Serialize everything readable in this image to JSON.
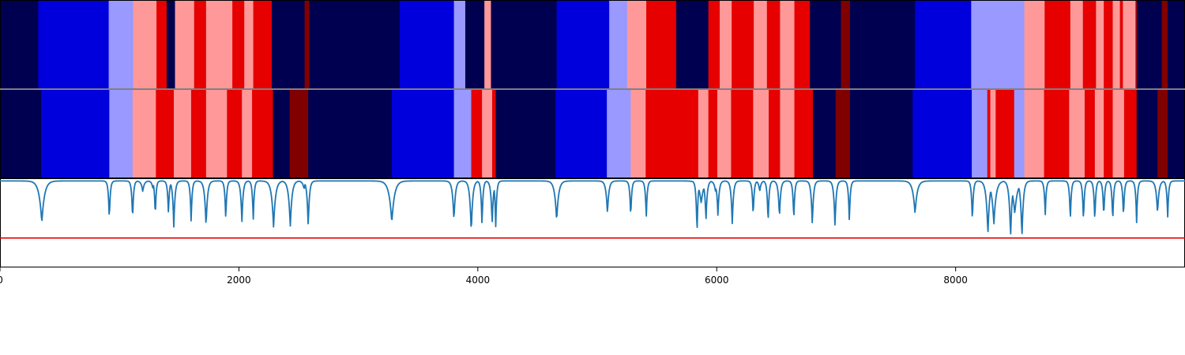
{
  "chart_data": {
    "type": "heatmap",
    "x_range": [
      0,
      9920
    ],
    "x_ticks": [
      0,
      2000,
      4000,
      6000,
      8000
    ],
    "x_tick_labels": [
      "0",
      "2000",
      "4000",
      "6000",
      "8000"
    ],
    "palette": {
      "navy": "#000050",
      "blue": "#0000dc",
      "lightblue": "#9999ff",
      "pink": "#ff9999",
      "red": "#e60000",
      "darkred": "#800000"
    },
    "rows": [
      {
        "segments": [
          {
            "x0": 0,
            "x1": 320,
            "c": "navy"
          },
          {
            "x0": 320,
            "x1": 910,
            "c": "blue"
          },
          {
            "x0": 910,
            "x1": 1115,
            "c": "lightblue"
          },
          {
            "x0": 1115,
            "x1": 1310,
            "c": "pink"
          },
          {
            "x0": 1310,
            "x1": 1395,
            "c": "red"
          },
          {
            "x0": 1395,
            "x1": 1465,
            "c": "navy"
          },
          {
            "x0": 1465,
            "x1": 1625,
            "c": "pink"
          },
          {
            "x0": 1625,
            "x1": 1725,
            "c": "red"
          },
          {
            "x0": 1725,
            "x1": 1945,
            "c": "pink"
          },
          {
            "x0": 1945,
            "x1": 2045,
            "c": "red"
          },
          {
            "x0": 2045,
            "x1": 2120,
            "c": "pink"
          },
          {
            "x0": 2120,
            "x1": 2275,
            "c": "red"
          },
          {
            "x0": 2275,
            "x1": 2550,
            "c": "navy"
          },
          {
            "x0": 2550,
            "x1": 2590,
            "c": "darkred"
          },
          {
            "x0": 2590,
            "x1": 3345,
            "c": "navy"
          },
          {
            "x0": 3345,
            "x1": 3800,
            "c": "blue"
          },
          {
            "x0": 3800,
            "x1": 3895,
            "c": "lightblue"
          },
          {
            "x0": 3895,
            "x1": 4055,
            "c": "navy"
          },
          {
            "x0": 4055,
            "x1": 4110,
            "c": "pink"
          },
          {
            "x0": 4110,
            "x1": 4660,
            "c": "navy"
          },
          {
            "x0": 4660,
            "x1": 5100,
            "c": "blue"
          },
          {
            "x0": 5100,
            "x1": 5250,
            "c": "lightblue"
          },
          {
            "x0": 5250,
            "x1": 5410,
            "c": "pink"
          },
          {
            "x0": 5410,
            "x1": 5660,
            "c": "red"
          },
          {
            "x0": 5660,
            "x1": 5930,
            "c": "navy"
          },
          {
            "x0": 5930,
            "x1": 6025,
            "c": "red"
          },
          {
            "x0": 6025,
            "x1": 6125,
            "c": "pink"
          },
          {
            "x0": 6125,
            "x1": 6310,
            "c": "red"
          },
          {
            "x0": 6310,
            "x1": 6420,
            "c": "pink"
          },
          {
            "x0": 6420,
            "x1": 6530,
            "c": "red"
          },
          {
            "x0": 6530,
            "x1": 6650,
            "c": "pink"
          },
          {
            "x0": 6650,
            "x1": 6780,
            "c": "red"
          },
          {
            "x0": 6780,
            "x1": 7040,
            "c": "navy"
          },
          {
            "x0": 7040,
            "x1": 7115,
            "c": "darkred"
          },
          {
            "x0": 7115,
            "x1": 7660,
            "c": "navy"
          },
          {
            "x0": 7660,
            "x1": 8130,
            "c": "blue"
          },
          {
            "x0": 8130,
            "x1": 8575,
            "c": "lightblue"
          },
          {
            "x0": 8575,
            "x1": 8745,
            "c": "pink"
          },
          {
            "x0": 8745,
            "x1": 8960,
            "c": "red"
          },
          {
            "x0": 8960,
            "x1": 9065,
            "c": "pink"
          },
          {
            "x0": 9065,
            "x1": 9175,
            "c": "red"
          },
          {
            "x0": 9175,
            "x1": 9240,
            "c": "pink"
          },
          {
            "x0": 9240,
            "x1": 9315,
            "c": "red"
          },
          {
            "x0": 9315,
            "x1": 9375,
            "c": "pink"
          },
          {
            "x0": 9375,
            "x1": 9400,
            "c": "red"
          },
          {
            "x0": 9400,
            "x1": 9505,
            "c": "pink"
          },
          {
            "x0": 9505,
            "x1": 9515,
            "c": "red"
          },
          {
            "x0": 9515,
            "x1": 9725,
            "c": "navy"
          },
          {
            "x0": 9725,
            "x1": 9775,
            "c": "darkred"
          },
          {
            "x0": 9775,
            "x1": 9920,
            "c": "navy"
          }
        ]
      },
      {
        "segments": [
          {
            "x0": 0,
            "x1": 345,
            "c": "navy"
          },
          {
            "x0": 345,
            "x1": 915,
            "c": "blue"
          },
          {
            "x0": 915,
            "x1": 1110,
            "c": "lightblue"
          },
          {
            "x0": 1110,
            "x1": 1305,
            "c": "pink"
          },
          {
            "x0": 1305,
            "x1": 1455,
            "c": "red"
          },
          {
            "x0": 1455,
            "x1": 1600,
            "c": "pink"
          },
          {
            "x0": 1600,
            "x1": 1725,
            "c": "red"
          },
          {
            "x0": 1725,
            "x1": 1900,
            "c": "pink"
          },
          {
            "x0": 1900,
            "x1": 2025,
            "c": "red"
          },
          {
            "x0": 2025,
            "x1": 2110,
            "c": "pink"
          },
          {
            "x0": 2110,
            "x1": 2285,
            "c": "red"
          },
          {
            "x0": 2285,
            "x1": 2425,
            "c": "navy"
          },
          {
            "x0": 2425,
            "x1": 2580,
            "c": "darkred"
          },
          {
            "x0": 2580,
            "x1": 3280,
            "c": "navy"
          },
          {
            "x0": 3280,
            "x1": 3800,
            "c": "blue"
          },
          {
            "x0": 3800,
            "x1": 3945,
            "c": "lightblue"
          },
          {
            "x0": 3945,
            "x1": 4035,
            "c": "red"
          },
          {
            "x0": 4035,
            "x1": 4120,
            "c": "pink"
          },
          {
            "x0": 4120,
            "x1": 4150,
            "c": "red"
          },
          {
            "x0": 4150,
            "x1": 4650,
            "c": "navy"
          },
          {
            "x0": 4650,
            "x1": 5080,
            "c": "blue"
          },
          {
            "x0": 5080,
            "x1": 5280,
            "c": "lightblue"
          },
          {
            "x0": 5280,
            "x1": 5405,
            "c": "pink"
          },
          {
            "x0": 5405,
            "x1": 5845,
            "c": "red"
          },
          {
            "x0": 5845,
            "x1": 5930,
            "c": "pink"
          },
          {
            "x0": 5930,
            "x1": 6005,
            "c": "red"
          },
          {
            "x0": 6005,
            "x1": 6120,
            "c": "pink"
          },
          {
            "x0": 6120,
            "x1": 6305,
            "c": "red"
          },
          {
            "x0": 6305,
            "x1": 6435,
            "c": "pink"
          },
          {
            "x0": 6435,
            "x1": 6530,
            "c": "red"
          },
          {
            "x0": 6530,
            "x1": 6650,
            "c": "pink"
          },
          {
            "x0": 6650,
            "x1": 6805,
            "c": "red"
          },
          {
            "x0": 6805,
            "x1": 6995,
            "c": "navy"
          },
          {
            "x0": 6995,
            "x1": 7115,
            "c": "darkred"
          },
          {
            "x0": 7115,
            "x1": 7640,
            "c": "navy"
          },
          {
            "x0": 7640,
            "x1": 8135,
            "c": "blue"
          },
          {
            "x0": 8135,
            "x1": 8265,
            "c": "lightblue"
          },
          {
            "x0": 8265,
            "x1": 8290,
            "c": "red"
          },
          {
            "x0": 8290,
            "x1": 8335,
            "c": "pink"
          },
          {
            "x0": 8335,
            "x1": 8490,
            "c": "red"
          },
          {
            "x0": 8490,
            "x1": 8575,
            "c": "lightblue"
          },
          {
            "x0": 8575,
            "x1": 8740,
            "c": "pink"
          },
          {
            "x0": 8740,
            "x1": 8950,
            "c": "red"
          },
          {
            "x0": 8950,
            "x1": 9080,
            "c": "pink"
          },
          {
            "x0": 9080,
            "x1": 9165,
            "c": "red"
          },
          {
            "x0": 9165,
            "x1": 9240,
            "c": "pink"
          },
          {
            "x0": 9240,
            "x1": 9315,
            "c": "red"
          },
          {
            "x0": 9315,
            "x1": 9410,
            "c": "pink"
          },
          {
            "x0": 9410,
            "x1": 9515,
            "c": "red"
          },
          {
            "x0": 9515,
            "x1": 9690,
            "c": "navy"
          },
          {
            "x0": 9690,
            "x1": 9775,
            "c": "darkred"
          },
          {
            "x0": 9775,
            "x1": 9920,
            "c": "navy"
          }
        ]
      }
    ],
    "line": {
      "color": "#1f77b4",
      "y_range": [
        0,
        1
      ],
      "baseline": 0.97,
      "threshold": 0.33,
      "threshold_color": "#e00000",
      "dips": [
        [
          350,
          0.5,
          22
        ],
        [
          915,
          0.52,
          8
        ],
        [
          1110,
          0.52,
          8
        ],
        [
          1195,
          0.85,
          12
        ],
        [
          1280,
          0.88,
          10
        ],
        [
          1300,
          0.55,
          7
        ],
        [
          1410,
          0.6,
          8
        ],
        [
          1455,
          0.45,
          10
        ],
        [
          1600,
          0.5,
          8
        ],
        [
          1725,
          0.45,
          12
        ],
        [
          1890,
          0.52,
          8
        ],
        [
          2025,
          0.5,
          10
        ],
        [
          2120,
          0.52,
          8
        ],
        [
          2290,
          0.45,
          16
        ],
        [
          2430,
          0.45,
          14
        ],
        [
          2545,
          0.88,
          12
        ],
        [
          2580,
          0.45,
          10
        ],
        [
          3280,
          0.5,
          22
        ],
        [
          3800,
          0.52,
          12
        ],
        [
          3945,
          0.38,
          12
        ],
        [
          4035,
          0.45,
          8
        ],
        [
          4120,
          0.47,
          10
        ],
        [
          4150,
          0.45,
          8
        ],
        [
          4660,
          0.52,
          16
        ],
        [
          5085,
          0.6,
          12
        ],
        [
          5280,
          0.55,
          8
        ],
        [
          5410,
          0.55,
          8
        ],
        [
          5835,
          0.36,
          8
        ],
        [
          5870,
          0.72,
          20
        ],
        [
          5910,
          0.52,
          10
        ],
        [
          5990,
          0.85,
          12
        ],
        [
          6010,
          0.58,
          10
        ],
        [
          6130,
          0.48,
          10
        ],
        [
          6305,
          0.56,
          8
        ],
        [
          6360,
          0.85,
          10
        ],
        [
          6430,
          0.48,
          8
        ],
        [
          6525,
          0.55,
          10
        ],
        [
          6645,
          0.52,
          8
        ],
        [
          6800,
          0.47,
          10
        ],
        [
          6990,
          0.45,
          10
        ],
        [
          7110,
          0.5,
          8
        ],
        [
          7660,
          0.6,
          18
        ],
        [
          8140,
          0.5,
          8
        ],
        [
          8270,
          0.37,
          14
        ],
        [
          8320,
          0.48,
          18
        ],
        [
          8460,
          0.33,
          12
        ],
        [
          8495,
          0.6,
          22
        ],
        [
          8555,
          0.33,
          12
        ],
        [
          8750,
          0.58,
          8
        ],
        [
          8960,
          0.52,
          8
        ],
        [
          9070,
          0.5,
          8
        ],
        [
          9165,
          0.5,
          8
        ],
        [
          9240,
          0.55,
          8
        ],
        [
          9315,
          0.5,
          8
        ],
        [
          9405,
          0.55,
          8
        ],
        [
          9515,
          0.5,
          8
        ],
        [
          9690,
          0.6,
          12
        ],
        [
          9775,
          0.55,
          8
        ]
      ]
    }
  }
}
